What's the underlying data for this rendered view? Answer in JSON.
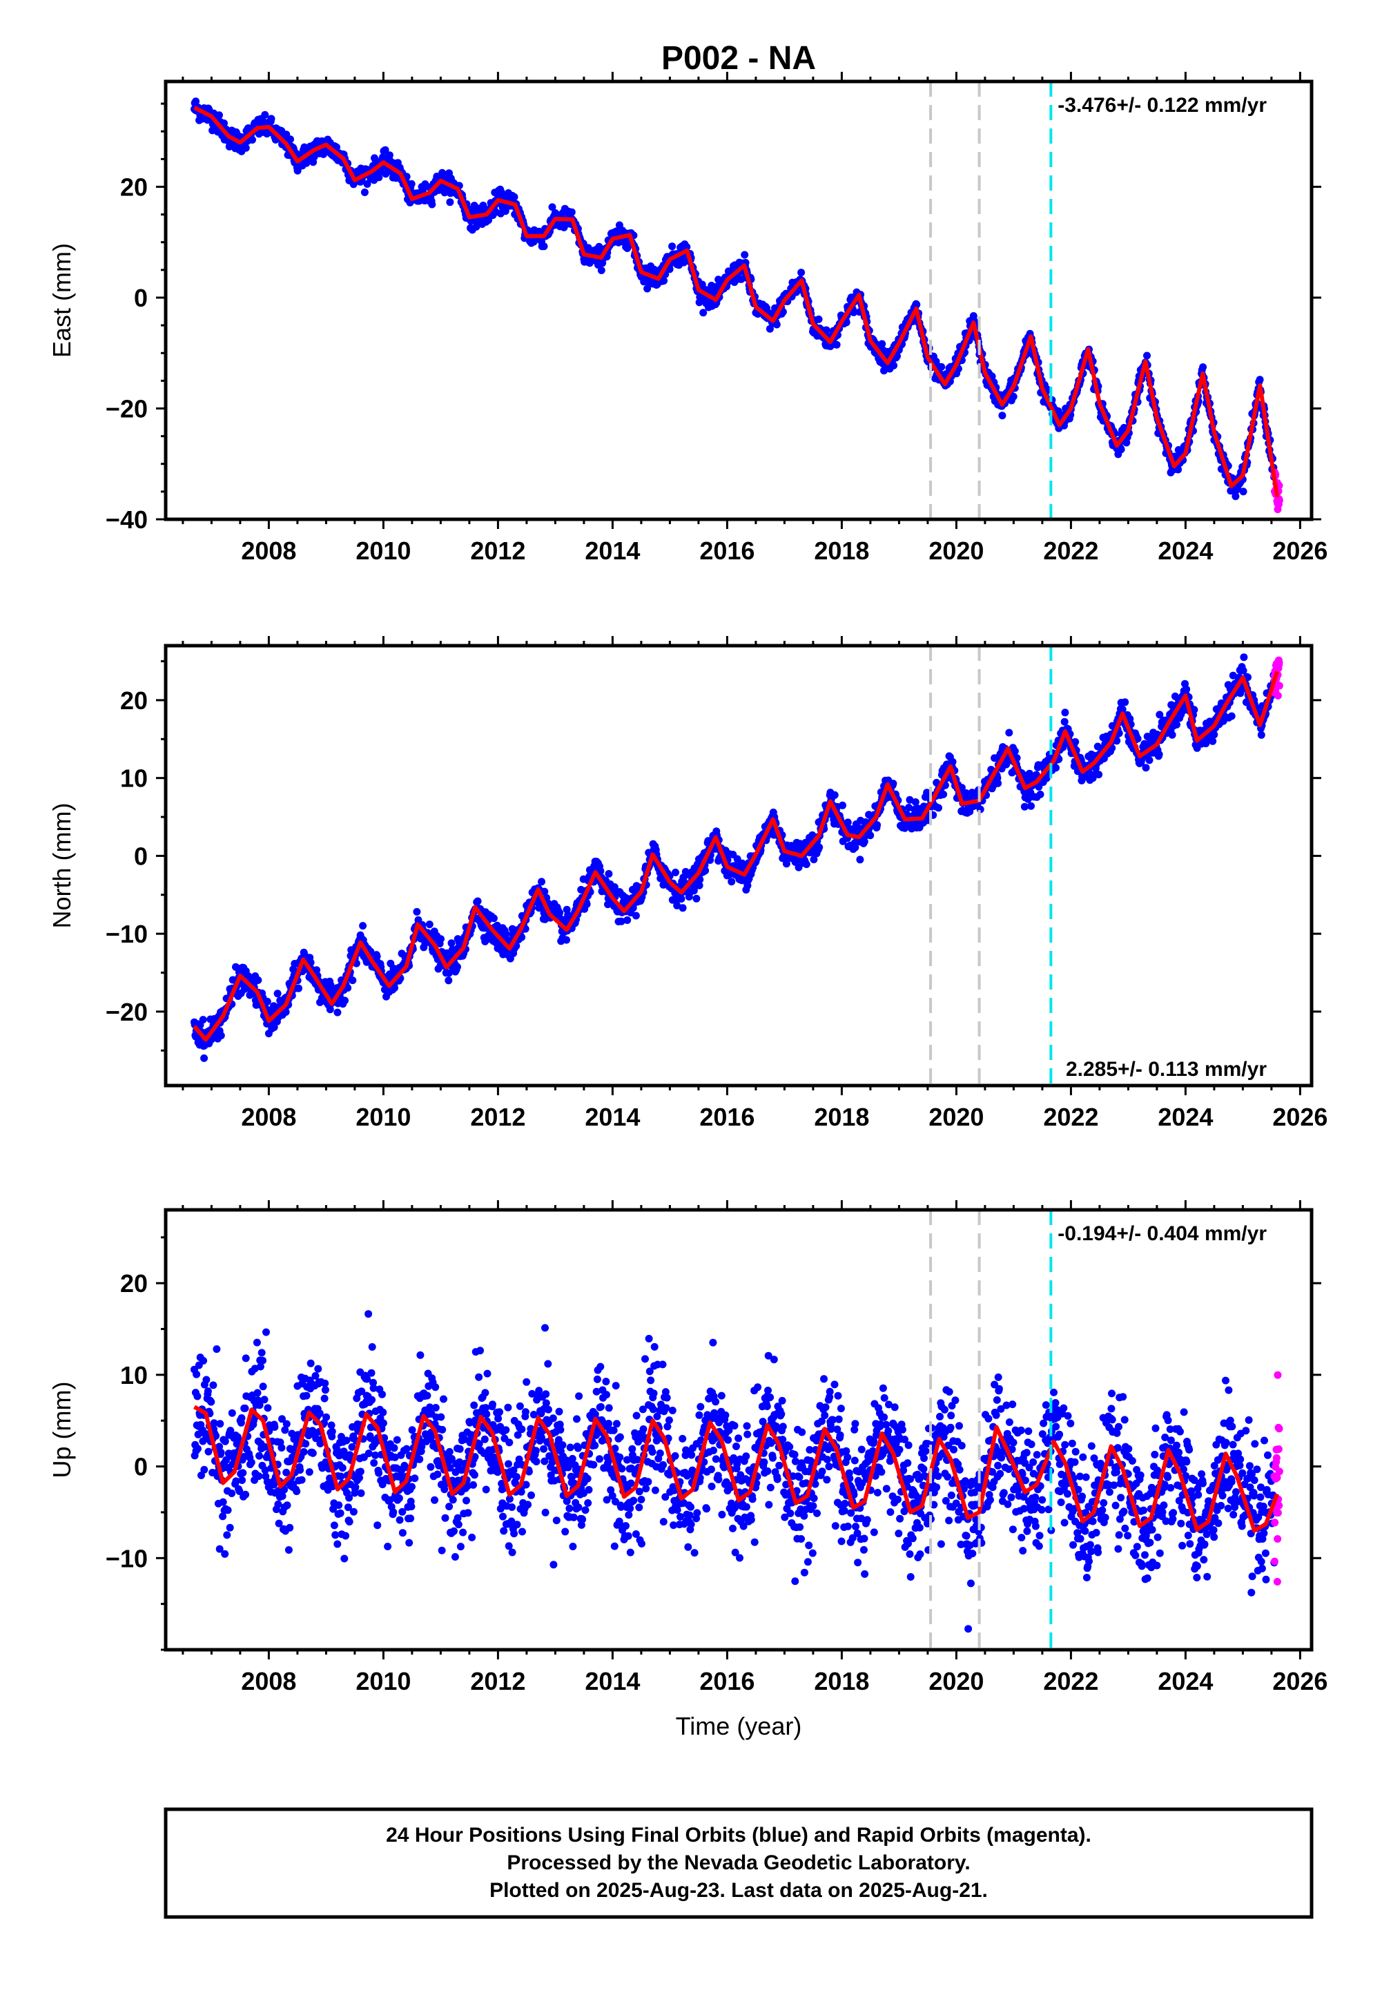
{
  "title": "P002 - NA",
  "xlabel": "Time (year)",
  "xticks": [
    2008,
    2010,
    2012,
    2014,
    2016,
    2018,
    2020,
    2022,
    2024,
    2026
  ],
  "xlim": [
    2006.2,
    2026.2
  ],
  "colors": {
    "final_orbits": "#0000ff",
    "rapid_orbits": "#ff00ff",
    "model_fit": "#ff0000",
    "event_lines": "#c8c8c8",
    "equipment_change": "#00e5ee"
  },
  "footer": {
    "line1": "24 Hour Positions Using Final Orbits (blue) and Rapid Orbits (magenta).",
    "line2": "Processed by the Nevada Geodetic Laboratory.",
    "line3": "Plotted on 2025-Aug-23. Last data on 2025-Aug-21."
  },
  "chart_data": [
    {
      "type": "scatter",
      "component": "east",
      "ylabel": "East (mm)",
      "ylim": [
        -40,
        39
      ],
      "yticks": [
        -40,
        -20,
        0,
        20
      ],
      "rate_label": "-3.476+/- 0.122 mm/yr",
      "rate_label_position": "top-right",
      "event_lines_gray": [
        2019.55,
        2020.4
      ],
      "event_line_cyan": 2021.65,
      "data_start": 2006.7,
      "rapid_start": 2025.55,
      "data_end": 2025.64,
      "fit": {
        "x": [
          2006.7,
          2007.0,
          2007.3,
          2007.5,
          2007.8,
          2008.0,
          2008.3,
          2008.5,
          2008.8,
          2009.0,
          2009.3,
          2009.5,
          2009.8,
          2010.0,
          2010.3,
          2010.5,
          2010.8,
          2011.0,
          2011.3,
          2011.5,
          2011.8,
          2012.0,
          2012.3,
          2012.5,
          2012.8,
          2013.0,
          2013.3,
          2013.5,
          2013.8,
          2014.0,
          2014.3,
          2014.5,
          2014.8,
          2015.0,
          2015.3,
          2015.5,
          2015.8,
          2016.0,
          2016.3,
          2016.5,
          2016.8,
          2017.0,
          2017.3,
          2017.5,
          2017.8,
          2018.0,
          2018.3,
          2018.5,
          2018.8,
          2019.0,
          2019.3,
          2019.5,
          2019.8,
          2020.0,
          2020.3,
          2020.5,
          2020.8,
          2021.0,
          2021.3,
          2021.5,
          2021.8,
          2022.0,
          2022.3,
          2022.5,
          2022.8,
          2023.0,
          2023.3,
          2023.5,
          2023.8,
          2024.0,
          2024.3,
          2024.5,
          2024.8,
          2025.0,
          2025.3,
          2025.6
        ],
        "y": [
          34.3,
          32.7,
          29.1,
          28.0,
          30.6,
          30.8,
          27.8,
          24.6,
          26.7,
          27.6,
          25.1,
          21.2,
          22.8,
          24.4,
          22.4,
          17.8,
          18.9,
          21.1,
          19.6,
          14.5,
          15.0,
          17.6,
          16.8,
          11.1,
          11.1,
          14.2,
          14.1,
          7.8,
          7.2,
          10.6,
          11.3,
          4.6,
          3.4,
          6.9,
          8.5,
          1.4,
          -0.4,
          3.2,
          5.8,
          -1.7,
          -4.2,
          -0.5,
          3.1,
          -4.8,
          -8.0,
          -4.3,
          0.5,
          -7.8,
          -11.8,
          -8.2,
          -2.0,
          -10.8,
          -15.6,
          -12.1,
          -4.5,
          -13.6,
          -19.3,
          -16.0,
          -7.0,
          -16.4,
          -23.0,
          -20.0,
          -9.3,
          -19.1,
          -26.7,
          -24.0,
          -11.5,
          -21.7,
          -30.4,
          -28.1,
          -13.7,
          -24.3,
          -34.0,
          -32.1,
          -15.8,
          -36.0
        ]
      }
    },
    {
      "type": "scatter",
      "component": "north",
      "ylabel": "North (mm)",
      "ylim": [
        -29.5,
        27
      ],
      "yticks": [
        -20,
        -10,
        0,
        10,
        20
      ],
      "rate_label": "2.285+/- 0.113 mm/yr",
      "rate_label_position": "bottom-right",
      "event_lines_gray": [
        2019.55,
        2020.4
      ],
      "event_line_cyan": 2021.65,
      "data_start": 2006.7,
      "rapid_start": 2025.55,
      "data_end": 2025.64,
      "fit": {
        "x": [
          2006.7,
          2006.9,
          2007.2,
          2007.5,
          2007.8,
          2008.0,
          2008.3,
          2008.6,
          2008.8,
          2009.1,
          2009.3,
          2009.6,
          2009.8,
          2010.1,
          2010.4,
          2010.6,
          2010.9,
          2011.1,
          2011.4,
          2011.6,
          2011.9,
          2012.2,
          2012.4,
          2012.7,
          2012.9,
          2013.2,
          2013.4,
          2013.7,
          2014.0,
          2014.2,
          2014.5,
          2014.7,
          2015.0,
          2015.2,
          2015.5,
          2015.8,
          2016.0,
          2016.3,
          2016.5,
          2016.8,
          2017.0,
          2017.3,
          2017.6,
          2017.8,
          2018.1,
          2018.3,
          2018.6,
          2018.8,
          2019.1,
          2019.4,
          2019.6,
          2019.9,
          2020.1,
          2020.4,
          2020.6,
          2020.9,
          2021.2,
          2021.4,
          2021.7,
          2021.9,
          2022.2,
          2022.4,
          2022.7,
          2022.9,
          2023.2,
          2023.5,
          2023.7,
          2024.0,
          2024.2,
          2024.5,
          2024.7,
          2025.0,
          2025.3,
          2025.6
        ],
        "y": [
          -21.9,
          -23.6,
          -20.6,
          -15.4,
          -17.5,
          -21.2,
          -19.1,
          -13.3,
          -15.5,
          -19.0,
          -16.7,
          -11.1,
          -13.5,
          -16.7,
          -14.2,
          -8.8,
          -11.5,
          -14.3,
          -11.8,
          -6.6,
          -9.5,
          -11.9,
          -9.4,
          -4.3,
          -7.5,
          -9.5,
          -7.0,
          -2.1,
          -5.4,
          -7.1,
          -4.6,
          0.2,
          -3.4,
          -4.7,
          -2.2,
          2.4,
          -1.4,
          -2.4,
          0.2,
          4.7,
          0.6,
          0.0,
          2.6,
          7.0,
          2.7,
          2.4,
          5.0,
          9.2,
          4.7,
          4.8,
          7.4,
          11.5,
          6.7,
          7.1,
          9.8,
          13.8,
          8.7,
          9.5,
          12.2,
          16.0,
          10.8,
          11.9,
          14.6,
          18.3,
          12.8,
          14.3,
          17.0,
          20.6,
          14.8,
          16.7,
          19.4,
          22.9,
          16.8,
          23.7
        ]
      }
    },
    {
      "type": "scatter",
      "component": "up",
      "ylabel": "Up (mm)",
      "ylim": [
        -20,
        28
      ],
      "yticks": [
        -10,
        0,
        10,
        20
      ],
      "rate_label": "-0.194+/- 0.404 mm/yr",
      "rate_label_position": "top-right",
      "event_lines_gray": [
        2019.55,
        2020.4
      ],
      "event_line_cyan": 2021.65,
      "data_start": 2006.7,
      "rapid_start": 2025.55,
      "data_end": 2025.64,
      "fit": {
        "x": [
          2006.7,
          2006.9,
          2007.2,
          2007.4,
          2007.7,
          2007.9,
          2008.2,
          2008.4,
          2008.7,
          2008.9,
          2009.2,
          2009.4,
          2009.7,
          2009.9,
          2010.2,
          2010.4,
          2010.7,
          2010.9,
          2011.2,
          2011.4,
          2011.7,
          2011.9,
          2012.2,
          2012.4,
          2012.7,
          2012.9,
          2013.2,
          2013.4,
          2013.7,
          2013.9,
          2014.2,
          2014.4,
          2014.7,
          2014.9,
          2015.2,
          2015.4,
          2015.7,
          2015.9,
          2016.2,
          2016.4,
          2016.7,
          2016.9,
          2017.2,
          2017.4,
          2017.7,
          2017.9,
          2018.2,
          2018.4,
          2018.7,
          2018.9,
          2019.2,
          2019.4,
          2019.7,
          2019.9,
          2020.2,
          2020.4,
          2020.7,
          2020.9,
          2021.2,
          2021.4,
          2021.7,
          2021.9,
          2022.2,
          2022.4,
          2022.7,
          2022.9,
          2023.2,
          2023.4,
          2023.7,
          2023.9,
          2024.2,
          2024.4,
          2024.7,
          2024.9,
          2025.2,
          2025.4,
          2025.6
        ],
        "y": [
          6.5,
          5.8,
          -1.8,
          -0.6,
          6.2,
          5.0,
          -2.2,
          -0.9,
          5.9,
          4.6,
          -2.5,
          -1.3,
          5.7,
          4.2,
          -2.8,
          -1.6,
          5.5,
          3.9,
          -3.0,
          -1.8,
          5.4,
          3.7,
          -3.1,
          -2.0,
          5.3,
          3.5,
          -3.2,
          -2.1,
          5.2,
          3.3,
          -3.3,
          -2.3,
          5.0,
          3.1,
          -3.5,
          -2.5,
          4.8,
          2.9,
          -3.7,
          -2.8,
          4.5,
          2.5,
          -4.0,
          -3.2,
          4.1,
          2.0,
          -4.5,
          -3.8,
          3.6,
          1.4,
          -5.0,
          -4.3,
          3.0,
          0.8,
          -5.6,
          -5.0,
          4.3,
          1.6,
          -2.8,
          -2.0,
          2.7,
          0.4,
          -6.0,
          -5.0,
          2.2,
          -0.2,
          -6.5,
          -5.6,
          1.8,
          -0.7,
          -6.9,
          -6.0,
          1.4,
          -1.1,
          -7.0,
          -6.3,
          -3.0
        ]
      }
    }
  ]
}
